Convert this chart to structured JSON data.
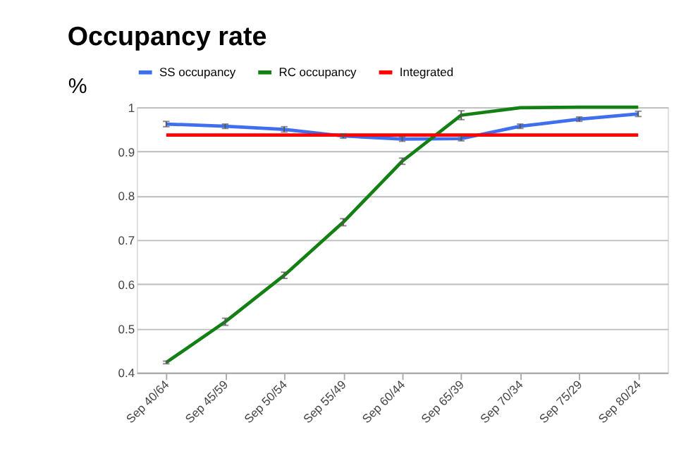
{
  "chart_data": {
    "type": "line",
    "title": "Occupancy rate",
    "ylabel": "%",
    "categories": [
      "Sep 40/64",
      "Sep 45/59",
      "Sep 50/54",
      "Sep 55/49",
      "Sep 60/44",
      "Sep 65/39",
      "Sep 70/34",
      "Sep 75/29",
      "Sep 80/24"
    ],
    "series": [
      {
        "name": "SS occupancy",
        "color": "#3f6fef",
        "values": [
          0.962,
          0.957,
          0.95,
          0.935,
          0.928,
          0.929,
          0.957,
          0.973,
          0.985
        ],
        "errors": [
          0.006,
          0.005,
          0.006,
          0.005,
          0.005,
          0.005,
          0.005,
          0.005,
          0.006
        ]
      },
      {
        "name": "RC occupancy",
        "color": "#138013",
        "values": [
          0.423,
          0.515,
          0.62,
          0.74,
          0.878,
          0.982,
          0.999,
          1.0,
          1.0
        ],
        "errors": [
          0.003,
          0.008,
          0.007,
          0.008,
          0.007,
          0.01,
          null,
          null,
          null
        ]
      },
      {
        "name": "Integrated",
        "color": "#ff0000",
        "values": [
          0.937,
          0.937,
          0.937,
          0.937,
          0.937,
          0.937,
          0.937,
          0.937,
          0.937
        ]
      }
    ],
    "ylim": [
      0.4,
      1
    ],
    "yticks": [
      0.4,
      0.5,
      0.6,
      0.7,
      0.8,
      0.9,
      1
    ],
    "grid": "y",
    "legend": "top",
    "marker": "none",
    "line_style": "solid"
  }
}
